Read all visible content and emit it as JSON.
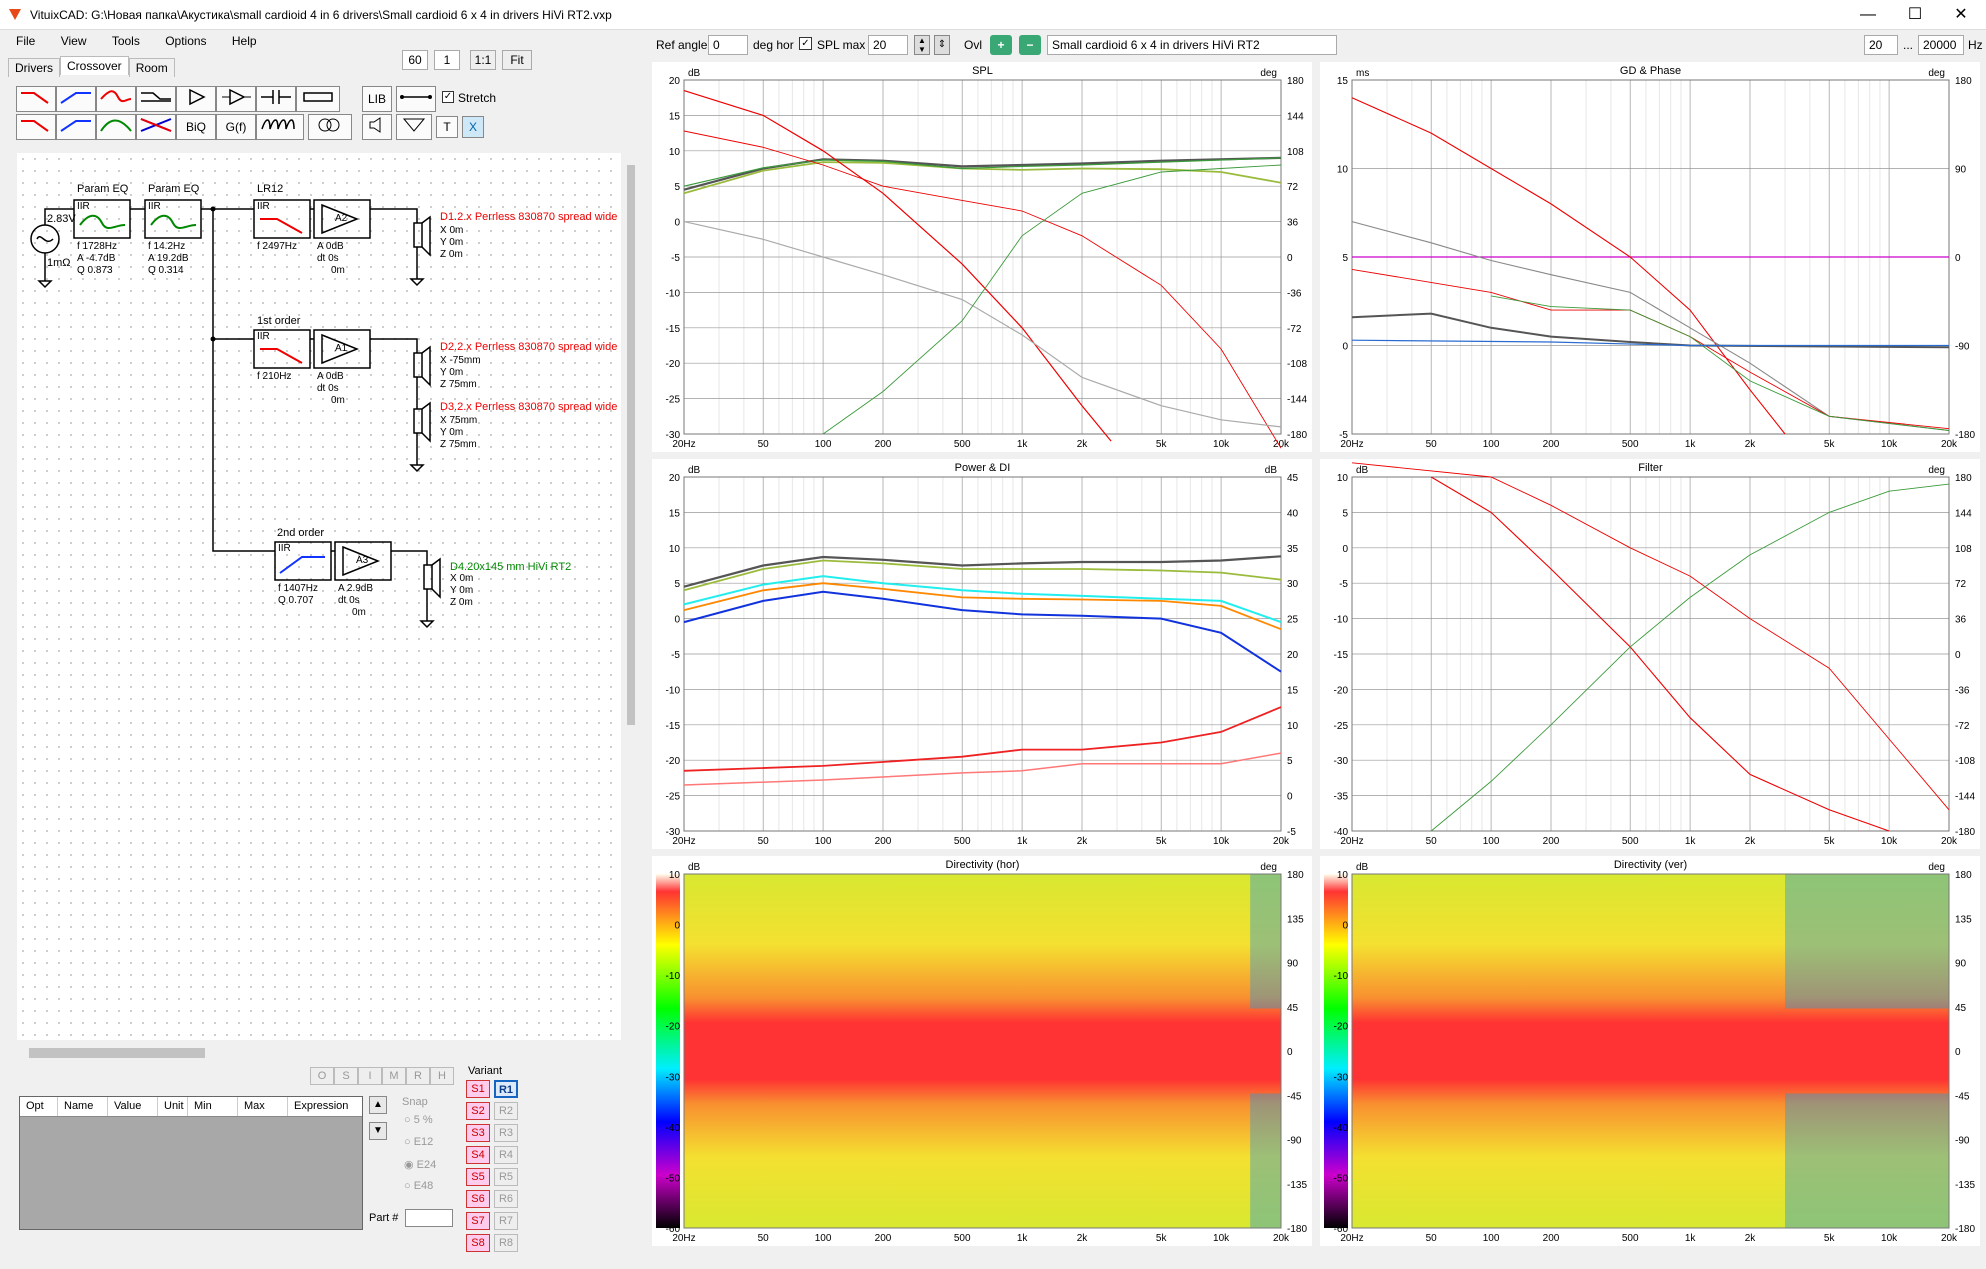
{
  "window": {
    "title": "VituixCAD: G:\\Новая папка\\Акустика\\small cardioid 4 in 6 drivers\\Small cardioid 6 x 4 in drivers HiVi RT2.vxp"
  },
  "menu": [
    "File",
    "View",
    "Tools",
    "Options",
    "Help"
  ],
  "tabs": [
    "Drivers",
    "Crossover",
    "Room"
  ],
  "zoom": {
    "a": "60",
    "b": "1",
    "c": "1:1",
    "d": "Fit"
  },
  "toolbar": {
    "row1": [
      "LP",
      "HP",
      "BP",
      "Shelf",
      "Amp",
      "Buf",
      "Cap",
      "Res",
      "LIB",
      "Wire"
    ],
    "row2": [
      "LP1",
      "HP1",
      "BP1",
      "Notch",
      "BiQ",
      "G(f)",
      "Ind",
      "Xfmr",
      "Spk",
      "Gnd",
      "T",
      "X"
    ],
    "stretch": "Stretch"
  },
  "top": {
    "ref_angle_label": "Ref angle",
    "ref_angle": "0",
    "deg_hor": "deg hor",
    "splmax_label": "SPL max",
    "splmax": "20",
    "ovl": "Ovl",
    "project": "Small cardioid 6 x 4 in drivers HiVi RT2",
    "fmin": "20",
    "dots": "...",
    "fmax": "20000",
    "hz": "Hz"
  },
  "schematic": {
    "source": {
      "v": "2.83V",
      "r": "1mΩ"
    },
    "peq1": {
      "title": "Param EQ",
      "type": "IIR",
      "f": "f   1728Hz",
      "a": "A   -4.7dB",
      "q": "Q  0.873"
    },
    "peq2": {
      "title": "Param EQ",
      "type": "IIR",
      "f": "f   14.2Hz",
      "a": "A   19.2dB",
      "q": "Q  0.314"
    },
    "lr12": {
      "title": "LR12",
      "type": "IIR",
      "f": "f   2497Hz"
    },
    "a2": {
      "name": "A2",
      "a": "A  0dB",
      "dt": "dt 0s",
      "z": "0m"
    },
    "d1": {
      "name": "D1.2.x Perrless 830870 spread wide",
      "x": "X  0m",
      "y": "Y  0m",
      "z": "Z  0m"
    },
    "first": {
      "title": "1st order",
      "type": "IIR",
      "f": "f   210Hz"
    },
    "a1": {
      "name": "A1",
      "a": "A  0dB",
      "dt": "dt 0s",
      "z": "0m"
    },
    "d2": {
      "name": "D2.2.x Perrless 830870 spread wide",
      "x": "X  -75mm",
      "y": "Y  0m",
      "z": "Z  75mm"
    },
    "d3": {
      "name": "D3.2.x Perrless 830870 spread wide",
      "x": "X  75mm",
      "y": "Y  0m",
      "z": "Z  75mm"
    },
    "second": {
      "title": "2nd order",
      "type": "IIR",
      "f": "f   1407Hz",
      "q": "Q  0.707"
    },
    "a3": {
      "name": "A3",
      "a": "A  2.9dB",
      "dt": "dt 0s",
      "z": "0m"
    },
    "d4": {
      "name": "D4.20x145 mm HiVi RT2",
      "x": "X  0m",
      "y": "Y  0m",
      "z": "Z  0m"
    }
  },
  "opt": {
    "cols": [
      "Opt",
      "Name",
      "Value",
      "Unit",
      "Min",
      "Max",
      "Expression"
    ],
    "letters": [
      "O",
      "S",
      "I",
      "M",
      "R",
      "H"
    ]
  },
  "snap": {
    "title": "Snap",
    "items": [
      "5 %",
      "E12",
      "E24",
      "E48"
    ]
  },
  "part": "Part #",
  "variant": {
    "title": "Variant",
    "s": [
      "S1",
      "S2",
      "S3",
      "S4",
      "S5",
      "S6",
      "S7",
      "S8"
    ],
    "r": [
      "R1",
      "R2",
      "R3",
      "R4",
      "R5",
      "R6",
      "R7",
      "R8"
    ]
  },
  "charts": {
    "xticks": [
      "20Hz",
      "50",
      "100",
      "200",
      "500",
      "1k",
      "2k",
      "5k",
      "10k",
      "20k"
    ],
    "spl": {
      "title": "SPL",
      "lunit": "dB",
      "runit": "deg",
      "left": [
        "20",
        "15",
        "10",
        "5",
        "0",
        "-5",
        "-10",
        "-15",
        "-20",
        "-25",
        "-30"
      ],
      "right": [
        "180",
        "144",
        "108",
        "72",
        "36",
        "0",
        "-36",
        "-72",
        "-108",
        "-144",
        "-180"
      ]
    },
    "gd": {
      "title": "GD & Phase",
      "lunit": "ms",
      "runit": "deg",
      "left": [
        "15",
        "10",
        "5",
        "0",
        "-5"
      ],
      "right": [
        "180",
        "90",
        "0",
        "-90",
        "-180"
      ]
    },
    "pow": {
      "title": "Power & DI",
      "lunit": "dB",
      "runit": "dB",
      "left": [
        "20",
        "15",
        "10",
        "5",
        "0",
        "-5",
        "-10",
        "-15",
        "-20",
        "-25",
        "-30"
      ],
      "right": [
        "45",
        "40",
        "35",
        "30",
        "25",
        "20",
        "15",
        "10",
        "5",
        "0",
        "-5"
      ]
    },
    "filt": {
      "title": "Filter",
      "lunit": "dB",
      "runit": "deg",
      "left": [
        "10",
        "5",
        "0",
        "-5",
        "-10",
        "-15",
        "-20",
        "-25",
        "-30",
        "-35",
        "-40"
      ],
      "right": [
        "180",
        "144",
        "108",
        "72",
        "36",
        "0",
        "-36",
        "-72",
        "-108",
        "-144",
        "-180"
      ]
    },
    "dirh": {
      "title": "Directivity (hor)",
      "lunit": "dB",
      "runit": "deg",
      "left": [
        "10",
        "0",
        "-10",
        "-20",
        "-30",
        "-40",
        "-50",
        "-60"
      ],
      "right": [
        "180",
        "135",
        "90",
        "45",
        "0",
        "-45",
        "-90",
        "-135",
        "-180"
      ]
    },
    "dirv": {
      "title": "Directivity (ver)",
      "lunit": "dB",
      "runit": "deg",
      "left": [
        "10",
        "0",
        "-10",
        "-20",
        "-30",
        "-40",
        "-50",
        "-60"
      ],
      "right": [
        "180",
        "135",
        "90",
        "45",
        "0",
        "-45",
        "-90",
        "-135",
        "-180"
      ]
    }
  }
}
